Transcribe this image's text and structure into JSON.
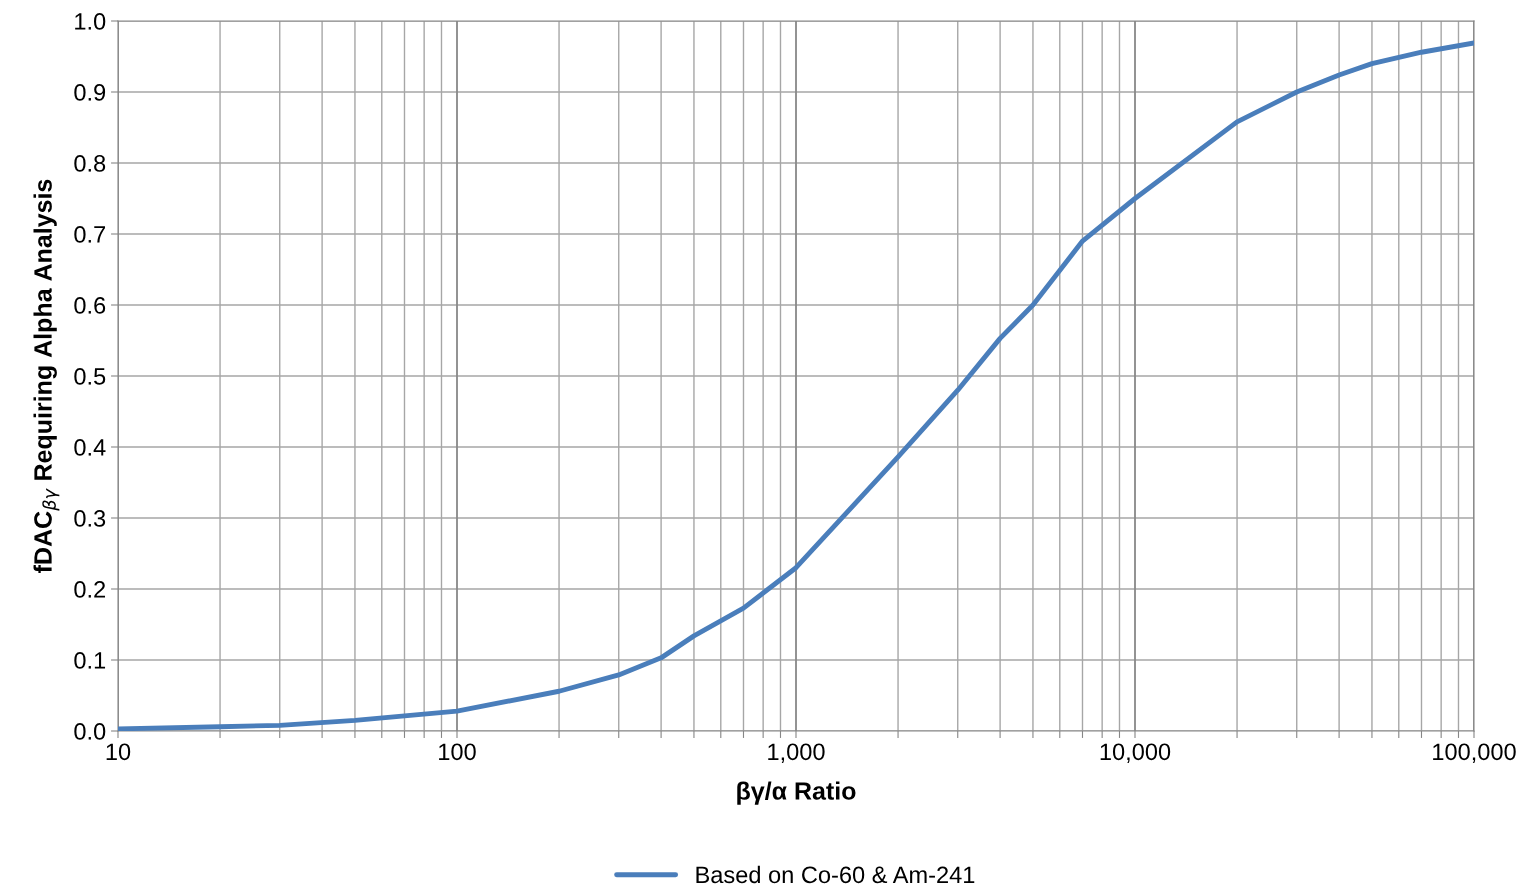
{
  "chart_data": {
    "type": "line",
    "xlabel": "βγ/α Ratio",
    "ylabel": "fDAC$_{βγ}$ Requiring Alpha Analysis",
    "log": "x",
    "grid": true,
    "legend": "bottom",
    "marker": "none",
    "line_style": "solid",
    "xlim": [
      10,
      100000
    ],
    "ylim": [
      0,
      1.0
    ],
    "xticks": [
      10,
      {
        "value": 20,
        "label": null
      },
      {
        "value": 30,
        "label": null
      },
      {
        "value": 40,
        "label": null
      },
      {
        "value": 50,
        "label": null
      },
      {
        "value": 60,
        "label": null
      },
      {
        "value": 70,
        "label": null
      },
      {
        "value": 80,
        "label": null
      },
      {
        "value": 90,
        "label": null
      },
      100,
      {
        "value": 200,
        "label": null
      },
      {
        "value": 300,
        "label": null
      },
      {
        "value": 400,
        "label": null
      },
      {
        "value": 500,
        "label": null
      },
      {
        "value": 600,
        "label": null
      },
      {
        "value": 700,
        "label": null
      },
      {
        "value": 800,
        "label": null
      },
      {
        "value": 900,
        "label": null
      },
      {
        "value": 1000,
        "label": "1,000"
      },
      {
        "value": 2000,
        "label": null
      },
      {
        "value": 3000,
        "label": null
      },
      {
        "value": 4000,
        "label": null
      },
      {
        "value": 5000,
        "label": null
      },
      {
        "value": 6000,
        "label": null
      },
      {
        "value": 7000,
        "label": null
      },
      {
        "value": 8000,
        "label": null
      },
      {
        "value": 9000,
        "label": null
      },
      {
        "value": 10000,
        "label": "10,000"
      },
      {
        "value": 20000,
        "label": null
      },
      {
        "value": 30000,
        "label": null
      },
      {
        "value": 40000,
        "label": null
      },
      {
        "value": 50000,
        "label": null
      },
      {
        "value": 60000,
        "label": null
      },
      {
        "value": 70000,
        "label": null
      },
      {
        "value": 80000,
        "label": null
      },
      {
        "value": 90000,
        "label": null
      },
      {
        "value": 100000,
        "label": "100,000"
      }
    ],
    "yticks": [
      {
        "value": 0,
        "label": "0.0"
      },
      0.1,
      0.2,
      0.3,
      0.4,
      0.5,
      0.6,
      0.7,
      0.8,
      0.9,
      {
        "value": 1,
        "label": "1.0"
      }
    ],
    "x": [
      10,
      20,
      30,
      50,
      100,
      200,
      300,
      400,
      500,
      700,
      1000,
      2000,
      3000,
      4000,
      5000,
      7000,
      10000,
      20000,
      30000,
      40000,
      50000,
      70000,
      100000
    ],
    "series": [
      {
        "name": "Based on Co-60 & Am-241",
        "color": "#4a7ebb",
        "values": [
          0.003,
          0.006,
          0.008,
          0.015,
          0.028,
          0.056,
          0.079,
          0.103,
          0.134,
          0.173,
          0.23,
          0.386,
          0.48,
          0.553,
          0.6,
          0.69,
          0.75,
          0.858,
          0.9,
          0.924,
          0.94,
          0.956,
          0.969
        ]
      }
    ]
  }
}
